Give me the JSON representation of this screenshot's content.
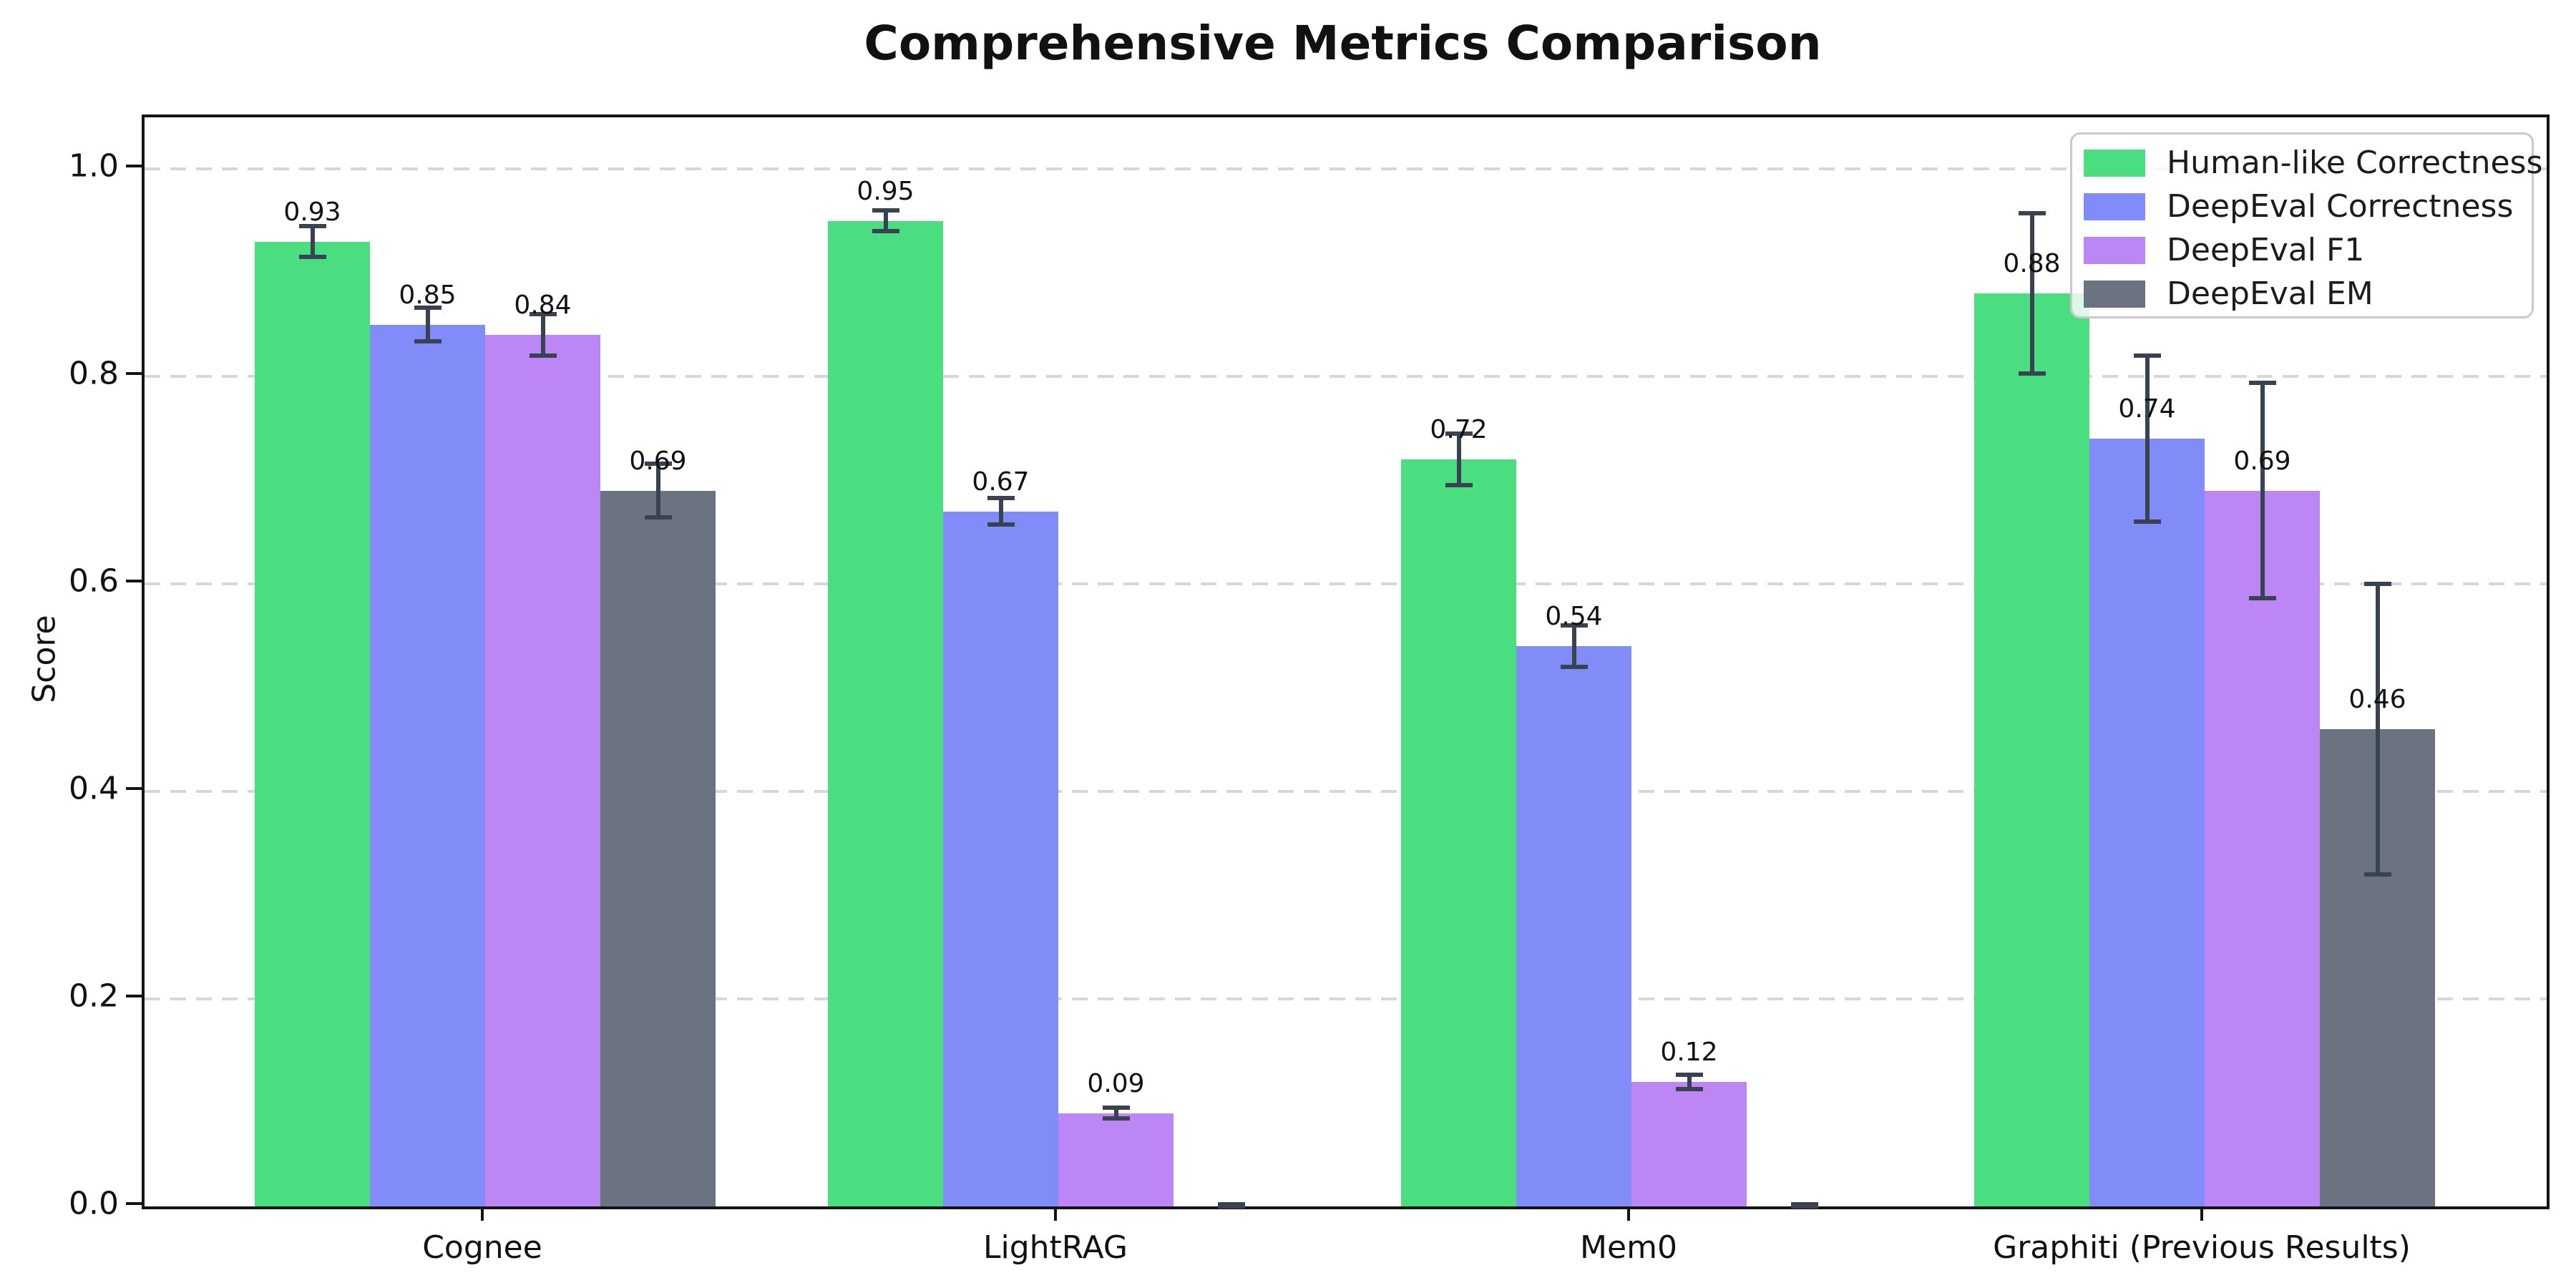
{
  "title": "Comprehensive Metrics Comparison",
  "ylabel": "Score",
  "chart_data": {
    "type": "bar",
    "categories": [
      "Cognee",
      "LightRAG",
      "Mem0",
      "Graphiti (Previous Results)"
    ],
    "series": [
      {
        "name": "Human-like Correctness",
        "color": "#4ade80",
        "values": [
          0.93,
          0.95,
          0.72,
          0.88
        ],
        "errors": [
          0.015,
          0.01,
          0.025,
          0.077
        ],
        "bar_labels": [
          "0.93",
          "0.95",
          "0.72",
          "0.88"
        ]
      },
      {
        "name": "DeepEval Correctness",
        "color": "#818cf8",
        "values": [
          0.85,
          0.67,
          0.54,
          0.74
        ],
        "errors": [
          0.016,
          0.013,
          0.02,
          0.08
        ],
        "bar_labels": [
          "0.85",
          "0.67",
          "0.54",
          "0.74"
        ]
      },
      {
        "name": "DeepEval F1",
        "color": "#bd86f5",
        "values": [
          0.84,
          0.09,
          0.12,
          0.69
        ],
        "errors": [
          0.02,
          0.005,
          0.007,
          0.104
        ],
        "bar_labels": [
          "0.84",
          "0.09",
          "0.12",
          "0.69"
        ]
      },
      {
        "name": "DeepEval EM",
        "color": "#6b7280",
        "values": [
          0.69,
          0.0,
          0.0,
          0.46
        ],
        "errors": [
          0.026,
          0.002,
          0.002,
          0.14
        ],
        "bar_labels": [
          "0.69",
          "",
          "",
          "0.46"
        ]
      }
    ],
    "ylim": [
      0.0,
      1.05
    ],
    "yticks": [
      0.0,
      0.2,
      0.4,
      0.6,
      0.8,
      1.0
    ],
    "ytick_labels": [
      "0.0",
      "0.2",
      "0.4",
      "0.6",
      "0.8",
      "1.0"
    ],
    "grid": "horizontal-dashed",
    "legend_position": "upper right",
    "error_bar_color": "#394251"
  }
}
